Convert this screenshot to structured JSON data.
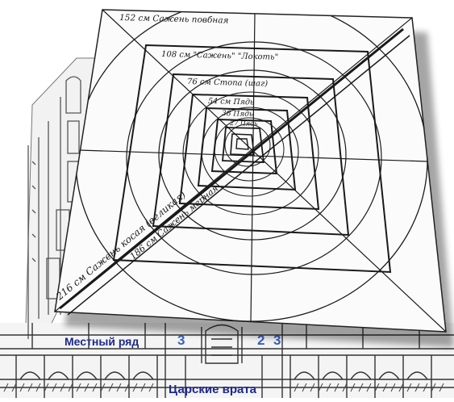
{
  "drawing": {
    "labels": {
      "l152": "152 см Сажень повбная",
      "l108": "108 см \"Сажень\" \"Локоть\"",
      "l76": "76 см Стопа (шаг)",
      "l54": "54 см Пядь",
      "l38": "38 Пядь",
      "l27": "27 Пядь",
      "diag_216": "216 см Сажень косая (великая)",
      "diag_186": "186 см Сажень мерная"
    }
  },
  "iconostasis": {
    "local_row": "Местный ряд",
    "royal_doors": "Царские врата",
    "num_3_left": "3",
    "num_2": "2",
    "num_3_right": "3"
  }
}
